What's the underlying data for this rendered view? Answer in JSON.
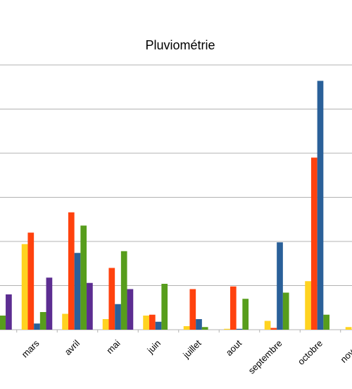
{
  "chart_data": {
    "type": "bar",
    "title": "Pluviométrie",
    "xlabel": "",
    "ylabel": "",
    "ylim": [
      0,
      300
    ],
    "grid": true,
    "categories": [
      "février",
      "mars",
      "avril",
      "mai",
      "juin",
      "juillet",
      "aout",
      "septembre",
      "octobre",
      "novembre"
    ],
    "visible_tick_labels": [
      "er",
      "mars",
      "avril",
      "mai",
      "juin",
      "juillet",
      "aout",
      "septembre",
      "octobre",
      "novem"
    ],
    "series": [
      {
        "color": "#ffd320",
        "values": [
          0,
          97,
          18,
          12,
          16,
          4,
          1,
          10,
          55,
          3
        ]
      },
      {
        "color": "#ff420e",
        "values": [
          0,
          110,
          133,
          70,
          17,
          46,
          49,
          2,
          195,
          0
        ]
      },
      {
        "color": "#2a6099",
        "values": [
          8,
          7,
          87,
          29,
          9,
          12,
          1,
          99,
          282,
          0
        ]
      },
      {
        "color": "#579d1c",
        "values": [
          16,
          20,
          118,
          89,
          52,
          3,
          35,
          42,
          17,
          0
        ]
      },
      {
        "color": "#5c2d91",
        "values": [
          40,
          59,
          53,
          46,
          0,
          0,
          0,
          0,
          0,
          0
        ]
      }
    ]
  }
}
